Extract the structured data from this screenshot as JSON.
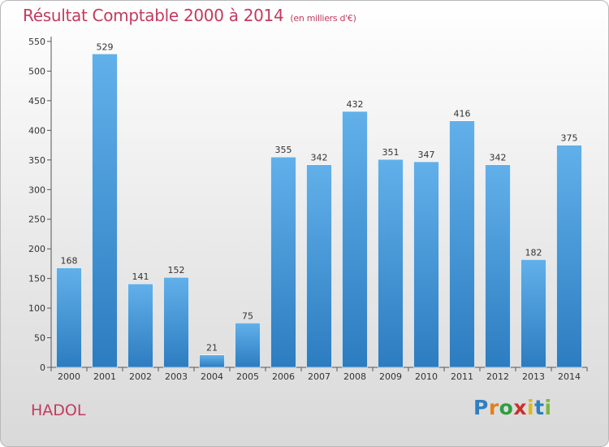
{
  "title": {
    "main": "Résultat Comptable 2000 à 2014",
    "unit": "(en milliers d'€)"
  },
  "commune": "HADOL",
  "logo": {
    "letters": [
      "P",
      "r",
      "o",
      "x",
      "i",
      "t",
      "i"
    ],
    "colors": [
      "#2f7fc1",
      "#e0811e",
      "#2f9e3f",
      "#c9302c",
      "#e0b81e",
      "#2f7fc1",
      "#7bb83a"
    ]
  },
  "colors": {
    "bar_top": "#62b0ea",
    "bar_bottom": "#2c7cc0",
    "axis": "#555555",
    "grid": "#bbbbbb"
  },
  "chart_data": {
    "type": "bar",
    "categories": [
      "2000",
      "2001",
      "2002",
      "2003",
      "2004",
      "2005",
      "2006",
      "2007",
      "2008",
      "2009",
      "2010",
      "2011",
      "2012",
      "2013",
      "2014"
    ],
    "values": [
      168,
      529,
      141,
      152,
      21,
      75,
      355,
      342,
      432,
      351,
      347,
      416,
      342,
      182,
      375
    ],
    "data_labels": [
      "168",
      "529",
      "141",
      "152",
      "21",
      "75",
      "355",
      "342",
      "432",
      "351",
      "347",
      "416",
      "342",
      "182",
      "375"
    ],
    "title": "Résultat Comptable 2000 à 2014",
    "xlabel": "",
    "ylabel": "",
    "ylim": [
      0,
      550
    ],
    "yticks": [
      0,
      50,
      100,
      150,
      200,
      250,
      300,
      350,
      400,
      450,
      500,
      550
    ],
    "grid": false,
    "legend": "none"
  }
}
